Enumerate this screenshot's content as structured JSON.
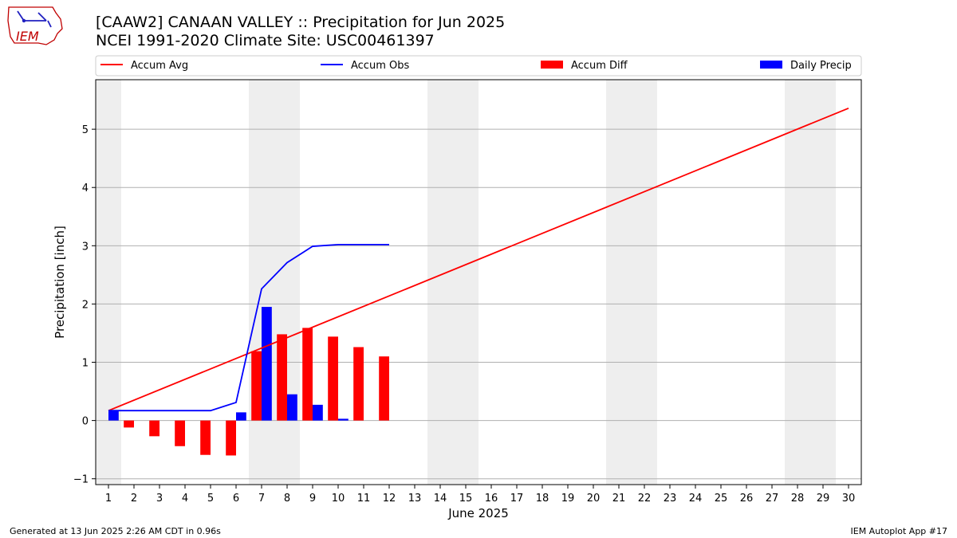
{
  "header": {
    "title_line1": "[CAAW2] CANAAN VALLEY :: Precipitation for Jun 2025",
    "title_line2": "NCEI 1991-2020 Climate Site: USC00461397",
    "logo_text": "IEM"
  },
  "footer": {
    "generated": "Generated at 13 Jun 2025 2:26 AM CDT in 0.96s",
    "app": "IEM Autoplot App #17"
  },
  "colors": {
    "avg": "#ff0000",
    "obs": "#0000ff",
    "diff": "#ff0000",
    "daily": "#0000ff",
    "weekend": "#eeeeee",
    "grid": "#b0b0b0"
  },
  "chart_data": {
    "type": "bar",
    "xlabel": "June 2025",
    "ylabel": "Precipitation [inch]",
    "xlim": [
      0.5,
      30.5
    ],
    "ylim": [
      -1.1,
      5.85
    ],
    "xticks": [
      1,
      2,
      3,
      4,
      5,
      6,
      7,
      8,
      9,
      10,
      11,
      12,
      13,
      14,
      15,
      16,
      17,
      18,
      19,
      20,
      21,
      22,
      23,
      24,
      25,
      26,
      27,
      28,
      29,
      30
    ],
    "yticks": [
      -1,
      0,
      1,
      2,
      3,
      4,
      5
    ],
    "grid": "horizontal",
    "legend_position": "top",
    "shaded_weekend_days": [
      1,
      7,
      8,
      14,
      15,
      21,
      22,
      28,
      29
    ],
    "legend": [
      "Accum Avg",
      "Accum Obs",
      "Accum Diff",
      "Daily Precip"
    ],
    "series": [
      {
        "name": "Accum Avg",
        "type": "line",
        "x": [
          1,
          30
        ],
        "values": [
          0.17,
          5.36
        ]
      },
      {
        "name": "Accum Obs",
        "type": "line",
        "x": [
          1,
          2,
          3,
          4,
          5,
          6,
          7,
          8,
          9,
          10,
          11,
          12
        ],
        "values": [
          0.17,
          0.17,
          0.17,
          0.17,
          0.17,
          0.31,
          2.26,
          2.71,
          2.99,
          3.02,
          3.02,
          3.02
        ]
      },
      {
        "name": "Accum Diff",
        "type": "bar",
        "x": [
          1,
          2,
          3,
          4,
          5,
          6,
          7,
          8,
          9,
          10,
          11,
          12
        ],
        "values": [
          0.0,
          -0.12,
          -0.27,
          -0.44,
          -0.59,
          -0.6,
          1.19,
          1.48,
          1.59,
          1.44,
          1.26,
          1.1
        ]
      },
      {
        "name": "Daily Precip",
        "type": "bar",
        "x": [
          1,
          2,
          3,
          4,
          5,
          6,
          7,
          8,
          9,
          10,
          11,
          12
        ],
        "values": [
          0.17,
          0,
          0,
          0,
          0,
          0.14,
          1.95,
          0.45,
          0.27,
          0.03,
          0,
          0
        ]
      }
    ]
  }
}
